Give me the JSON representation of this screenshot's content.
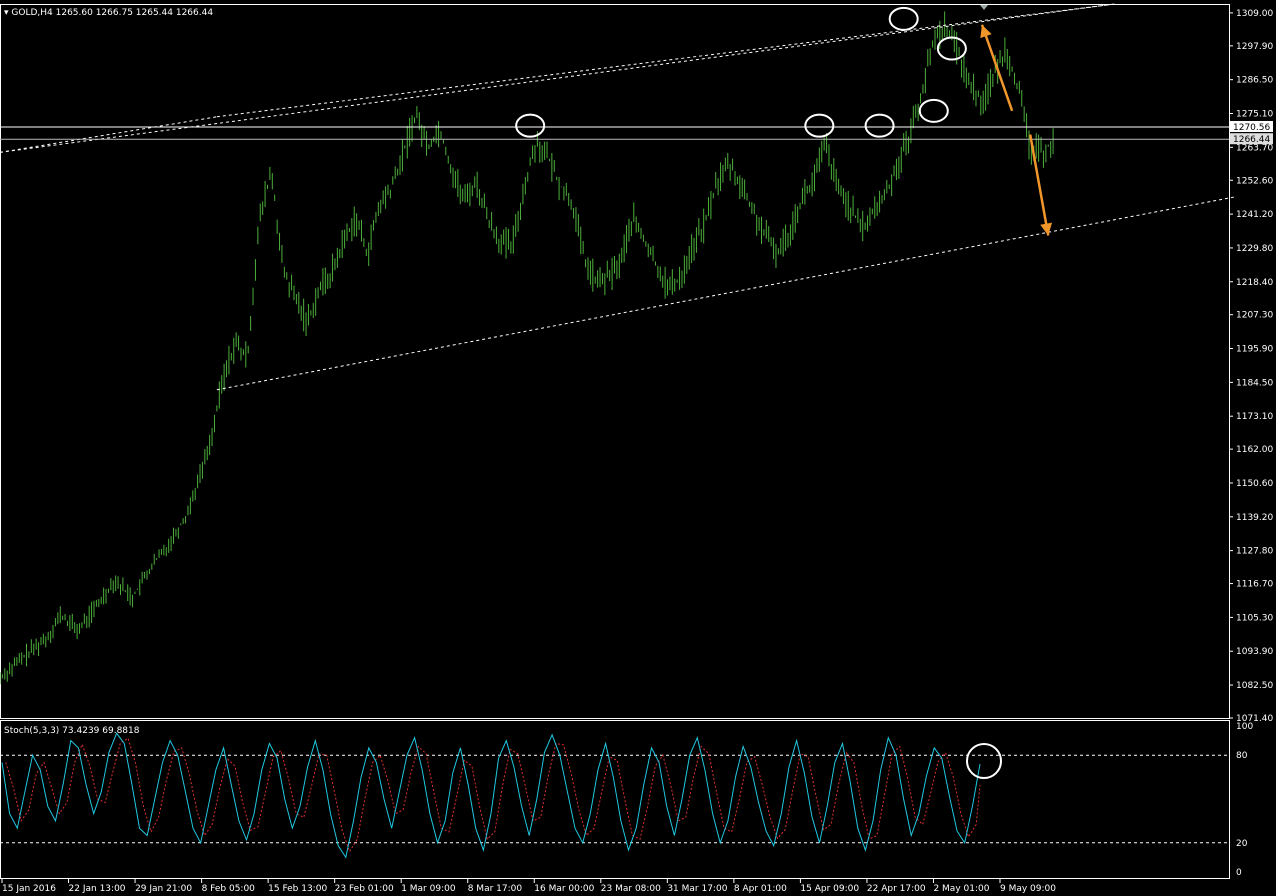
{
  "header": {
    "symbol": "GOLD,H4",
    "ohlc": "1265.60 1266.75 1265.44 1266.44"
  },
  "stoch_header": {
    "label": "Stoch(5,3,3) 73.4239 69.8818"
  },
  "colors": {
    "background": "#000000",
    "candle": "#4caf3a",
    "stoch_main": "#20c8e0",
    "stoch_signal": "#e03030",
    "arrow": "#f0962a",
    "annotation": "#ffffff",
    "level_line": "#cccccc"
  },
  "chart_data": [
    {
      "type": "bar",
      "subtype": "ohlc",
      "title": "GOLD,H4",
      "y_ticks": [
        "1309.00",
        "1297.90",
        "1286.50",
        "1275.10",
        "1263.70",
        "1252.60",
        "1241.20",
        "1229.80",
        "1218.40",
        "1207.30",
        "1195.90",
        "1184.50",
        "1173.10",
        "1162.00",
        "1150.60",
        "1139.20",
        "1127.80",
        "1116.70",
        "1105.30",
        "1093.90",
        "1082.50",
        "1071.40"
      ],
      "ylim": [
        1071.4,
        1312.0
      ],
      "x_ticks": [
        "15 Jan 2016",
        "22 Jan 13:00",
        "29 Jan 21:00",
        "8 Feb 05:00",
        "15 Feb 13:00",
        "23 Feb 01:00",
        "1 Mar 09:00",
        "8 Mar 17:00",
        "16 Mar 00:00",
        "23 Mar 08:00",
        "31 Mar 17:00",
        "8 Apr 01:00",
        "15 Apr 09:00",
        "22 Apr 17:00",
        "2 May 01:00",
        "9 May 09:00"
      ],
      "price_labels": [
        "1270.56",
        "1266.44"
      ],
      "horizontal_levels": [
        1270.56,
        1266.44
      ],
      "trend_path": [
        [
          0,
          1085
        ],
        [
          4,
          1092
        ],
        [
          8,
          1099
        ],
        [
          10,
          1106
        ],
        [
          13,
          1101
        ],
        [
          16,
          1109
        ],
        [
          19,
          1118
        ],
        [
          22,
          1112
        ],
        [
          25,
          1122
        ],
        [
          28,
          1130
        ],
        [
          31,
          1140
        ],
        [
          33,
          1152
        ],
        [
          35,
          1165
        ],
        [
          37,
          1185
        ],
        [
          39,
          1198
        ],
        [
          41,
          1192
        ],
        [
          43,
          1238
        ],
        [
          45,
          1256
        ],
        [
          47,
          1222
        ],
        [
          49,
          1213
        ],
        [
          51,
          1205
        ],
        [
          53,
          1216
        ],
        [
          55,
          1221
        ],
        [
          57,
          1232
        ],
        [
          59,
          1240
        ],
        [
          61,
          1228
        ],
        [
          63,
          1244
        ],
        [
          65,
          1250
        ],
        [
          67,
          1262
        ],
        [
          69,
          1275
        ],
        [
          71,
          1264
        ],
        [
          73,
          1270
        ],
        [
          75,
          1256
        ],
        [
          77,
          1246
        ],
        [
          79,
          1252
        ],
        [
          81,
          1240
        ],
        [
          83,
          1232
        ],
        [
          85,
          1230
        ],
        [
          87,
          1250
        ],
        [
          89,
          1266
        ],
        [
          91,
          1260
        ],
        [
          93,
          1251
        ],
        [
          95,
          1245
        ],
        [
          97,
          1226
        ],
        [
          99,
          1218
        ],
        [
          101,
          1220
        ],
        [
          103,
          1225
        ],
        [
          105,
          1240
        ],
        [
          107,
          1232
        ],
        [
          109,
          1224
        ],
        [
          111,
          1216
        ],
        [
          113,
          1220
        ],
        [
          115,
          1230
        ],
        [
          117,
          1238
        ],
        [
          119,
          1252
        ],
        [
          121,
          1258
        ],
        [
          123,
          1251
        ],
        [
          125,
          1242
        ],
        [
          127,
          1234
        ],
        [
          129,
          1228
        ],
        [
          131,
          1235
        ],
        [
          133,
          1246
        ],
        [
          135,
          1252
        ],
        [
          137,
          1265
        ],
        [
          139,
          1250
        ],
        [
          141,
          1244
        ],
        [
          143,
          1236
        ],
        [
          145,
          1242
        ],
        [
          147,
          1248
        ],
        [
          149,
          1258
        ],
        [
          151,
          1268
        ],
        [
          153,
          1282
        ],
        [
          155,
          1300
        ],
        [
          157,
          1305
        ],
        [
          159,
          1296
        ],
        [
          161,
          1285
        ],
        [
          163,
          1279
        ],
        [
          165,
          1288
        ],
        [
          167,
          1297
        ],
        [
          169,
          1284
        ],
        [
          171,
          1263
        ],
        [
          173,
          1262
        ],
        [
          175,
          1266
        ]
      ],
      "trendlines": [
        {
          "from": [
            0,
            1262
          ],
          "to": [
            185,
            1312
          ]
        },
        {
          "from": [
            36,
            1274
          ],
          "to": [
            185,
            1312
          ]
        },
        {
          "from": [
            36,
            1182
          ],
          "to": [
            205,
            1247
          ]
        }
      ],
      "circles": [
        {
          "x": 88,
          "y": 1271
        },
        {
          "x": 136,
          "y": 1271
        },
        {
          "x": 146,
          "y": 1271
        },
        {
          "x": 155,
          "y": 1276
        },
        {
          "x": 150,
          "y": 1307
        },
        {
          "x": 158,
          "y": 1297
        }
      ],
      "arrows": [
        {
          "from": [
            168,
            1276
          ],
          "to": [
            163,
            1305
          ]
        },
        {
          "from": [
            171,
            1268
          ],
          "to": [
            174,
            1234
          ]
        }
      ],
      "xlim": [
        0,
        204
      ]
    },
    {
      "type": "line",
      "title": "Stoch(5,3,3) 73.4239 69.8818",
      "ylim": [
        0,
        100
      ],
      "y_ticks": [
        "100",
        "80",
        "20",
        "0"
      ],
      "levels": [
        80,
        20
      ],
      "series": [
        {
          "name": "",
          "values": [
            75,
            40,
            30,
            55,
            80,
            70,
            45,
            35,
            60,
            90,
            85,
            60,
            40,
            55,
            82,
            95,
            88,
            60,
            30,
            25,
            50,
            75,
            90,
            80,
            55,
            30,
            20,
            45,
            70,
            85,
            60,
            35,
            22,
            40,
            70,
            88,
            78,
            50,
            30,
            45,
            72,
            90,
            70,
            40,
            18,
            10,
            35,
            65,
            85,
            75,
            50,
            30,
            55,
            80,
            92,
            70,
            40,
            20,
            35,
            68,
            85,
            60,
            30,
            15,
            40,
            78,
            90,
            72,
            45,
            25,
            50,
            82,
            94,
            80,
            55,
            30,
            20,
            40,
            70,
            88,
            65,
            35,
            15,
            30,
            60,
            85,
            75,
            45,
            25,
            50,
            80,
            92,
            70,
            40,
            20,
            35,
            65,
            86,
            72,
            48,
            28,
            18,
            40,
            72,
            90,
            68,
            38,
            20,
            45,
            75,
            88,
            62,
            30,
            15,
            35,
            70,
            92,
            80,
            50,
            25,
            40,
            66,
            85,
            78,
            52,
            28,
            20,
            45,
            74
          ]
        }
      ]
    }
  ]
}
